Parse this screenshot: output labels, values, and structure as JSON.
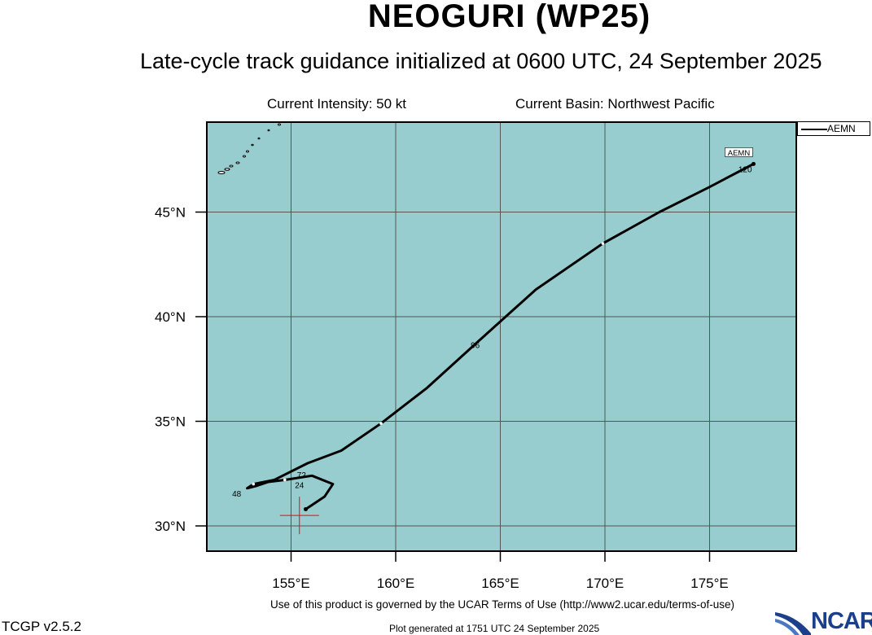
{
  "header": {
    "title": "NEOGURI (WP25)",
    "subtitle": "Late-cycle track guidance initialized at 0600 UTC, 24 September 2025",
    "current_intensity": "Current Intensity: 50 kt",
    "current_basin": "Current Basin: Northwest Pacific"
  },
  "map": {
    "ocean_color": "#97cdcf",
    "lon_ticks": [
      "155°E",
      "160°E",
      "165°E",
      "170°E",
      "175°E"
    ],
    "lat_ticks": [
      "45°N",
      "40°N",
      "35°N",
      "30°N"
    ],
    "current_position": {
      "lon": 155.4,
      "lat": 30.5,
      "marker_color": "#ff0000"
    },
    "tracks": [
      {
        "name": "AEMN",
        "color": "#000000",
        "label": "AEMN",
        "points": [
          {
            "lon": 155.7,
            "lat": 30.8
          },
          {
            "lon": 156.6,
            "lat": 31.4
          },
          {
            "lon": 157.0,
            "lat": 32.0
          },
          {
            "lon": 156.0,
            "lat": 32.4
          },
          {
            "lon": 154.7,
            "lat": 32.2
          },
          {
            "lon": 153.9,
            "lat": 32.1
          },
          {
            "lon": 153.3,
            "lat": 31.9
          },
          {
            "lon": 152.9,
            "lat": 31.8
          },
          {
            "lon": 153.2,
            "lat": 32.0
          },
          {
            "lon": 154.2,
            "lat": 32.2
          },
          {
            "lon": 155.8,
            "lat": 33.0
          },
          {
            "lon": 157.4,
            "lat": 33.6
          },
          {
            "lon": 159.3,
            "lat": 34.9
          },
          {
            "lon": 161.5,
            "lat": 36.6
          },
          {
            "lon": 163.7,
            "lat": 38.6
          },
          {
            "lon": 166.7,
            "lat": 41.3
          },
          {
            "lon": 169.9,
            "lat": 43.5
          },
          {
            "lon": 172.6,
            "lat": 45.0
          },
          {
            "lon": 175.0,
            "lat": 46.2
          },
          {
            "lon": 177.1,
            "lat": 47.3
          }
        ],
        "hour_markers": [
          {
            "label": "24",
            "lon": 155.4,
            "lat": 31.8
          },
          {
            "label": "48",
            "lon": 152.4,
            "lat": 31.4
          },
          {
            "label": "72",
            "lon": 155.5,
            "lat": 32.3
          },
          {
            "label": "96",
            "lon": 163.8,
            "lat": 38.5
          },
          {
            "label": "120",
            "lon": 176.7,
            "lat": 46.9
          }
        ]
      }
    ]
  },
  "legend": {
    "entries": [
      {
        "label": "AEMN"
      }
    ]
  },
  "footer": {
    "terms": "Use of this product is governed by the UCAR Terms of Use (http://www2.ucar.edu/terms-of-use)",
    "version": "TCGP v2.5.2",
    "generated": "Plot generated at 1751 UTC   24 September 2025",
    "logo_text": "NCAR",
    "logo_color": "#1b3f8b"
  }
}
